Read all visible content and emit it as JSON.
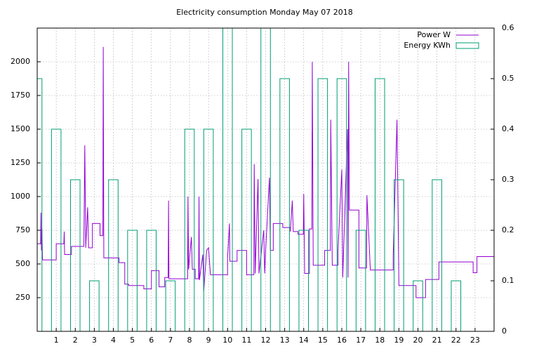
{
  "chart_data": {
    "type": "line",
    "title": "Electricity consumption Monday May 07 2018",
    "xlim": [
      0,
      24
    ],
    "xticks": [
      1,
      2,
      3,
      4,
      5,
      6,
      7,
      8,
      9,
      10,
      11,
      12,
      13,
      14,
      15,
      16,
      17,
      18,
      19,
      20,
      21,
      22,
      23
    ],
    "ylim": [
      0,
      2250
    ],
    "yticks": [
      250,
      500,
      750,
      1000,
      1250,
      1500,
      1750,
      2000
    ],
    "y2lim": [
      0,
      0.6
    ],
    "y2ticks": [
      0,
      0.1,
      0.2,
      0.3,
      0.4,
      0.5,
      0.6
    ],
    "grid": true,
    "legend": "top-right",
    "series": [
      {
        "name": "Power W",
        "color": "#9400d3",
        "x": [
          0,
          0.18,
          0.2,
          0.22,
          0.25,
          0.28,
          1.0,
          1.0,
          1.4,
          1.42,
          1.44,
          1.8,
          1.8,
          2.45,
          2.5,
          2.55,
          2.65,
          2.7,
          2.9,
          2.9,
          3.3,
          3.3,
          3.45,
          3.47,
          3.5,
          4.3,
          4.3,
          4.6,
          4.6,
          4.8,
          4.8,
          5.6,
          5.6,
          6.0,
          6.0,
          6.4,
          6.4,
          6.7,
          6.7,
          6.88,
          6.9,
          6.92,
          7.9,
          7.92,
          7.95,
          8.1,
          8.15,
          8.3,
          8.3,
          8.48,
          8.5,
          8.52,
          8.7,
          8.75,
          8.9,
          9.0,
          9.1,
          10.0,
          10.0,
          10.1,
          10.12,
          10.5,
          10.5,
          11.0,
          11.0,
          11.38,
          11.4,
          11.45,
          11.6,
          11.65,
          11.9,
          11.95,
          12.0,
          12.2,
          12.25,
          12.4,
          12.4,
          12.9,
          12.9,
          13.3,
          13.3,
          13.4,
          13.45,
          13.7,
          13.7,
          13.98,
          14.0,
          14.05,
          14.3,
          14.3,
          14.43,
          14.45,
          14.5,
          15.1,
          15.1,
          15.4,
          15.42,
          15.5,
          15.8,
          15.8,
          16.0,
          16.05,
          16.3,
          16.33,
          16.36,
          16.4,
          16.9,
          16.9,
          17.3,
          17.32,
          17.5,
          18.7,
          18.7,
          18.9,
          19.0,
          19.9,
          19.9,
          20.4,
          20.4,
          21.1,
          21.1,
          22.9,
          22.9,
          23.1,
          23.1,
          24.0
        ],
        "values": [
          650,
          650,
          880,
          600,
          760,
          530,
          530,
          650,
          650,
          740,
          570,
          570,
          630,
          630,
          1380,
          620,
          920,
          620,
          620,
          800,
          800,
          710,
          710,
          2110,
          545,
          545,
          510,
          510,
          350,
          350,
          340,
          340,
          315,
          315,
          450,
          450,
          330,
          330,
          400,
          400,
          970,
          390,
          390,
          1000,
          460,
          700,
          460,
          460,
          390,
          390,
          1000,
          380,
          570,
          300,
          600,
          620,
          420,
          420,
          540,
          800,
          520,
          520,
          600,
          600,
          420,
          420,
          1240,
          430,
          1130,
          430,
          750,
          430,
          600,
          1140,
          600,
          600,
          800,
          800,
          770,
          770,
          740,
          970,
          740,
          740,
          720,
          720,
          1020,
          430,
          430,
          760,
          760,
          2000,
          490,
          490,
          600,
          600,
          1570,
          490,
          490,
          600,
          1200,
          400,
          1500,
          400,
          2000,
          900,
          900,
          470,
          470,
          1010,
          455,
          455,
          560,
          1570,
          340,
          340,
          250,
          250,
          385,
          385,
          515,
          515,
          435,
          435,
          555,
          555
        ]
      },
      {
        "name": "Energy KWh",
        "color": "#009e73",
        "type": "bar",
        "axis": "y2",
        "x": [
          0,
          1,
          2,
          3,
          4,
          5,
          6,
          7,
          8,
          9,
          10,
          11,
          12,
          13,
          14,
          15,
          16,
          17,
          18,
          19,
          20,
          21,
          22,
          23
        ],
        "values": [
          0.5,
          0.4,
          0.3,
          0.1,
          0.3,
          0.2,
          0.2,
          0.1,
          0.4,
          0.4,
          0.6,
          0.4,
          0.6,
          0.5,
          0.2,
          0.5,
          0.5,
          0.2,
          0.5,
          0.3,
          0.1,
          0.3,
          0.1,
          0
        ]
      }
    ]
  }
}
